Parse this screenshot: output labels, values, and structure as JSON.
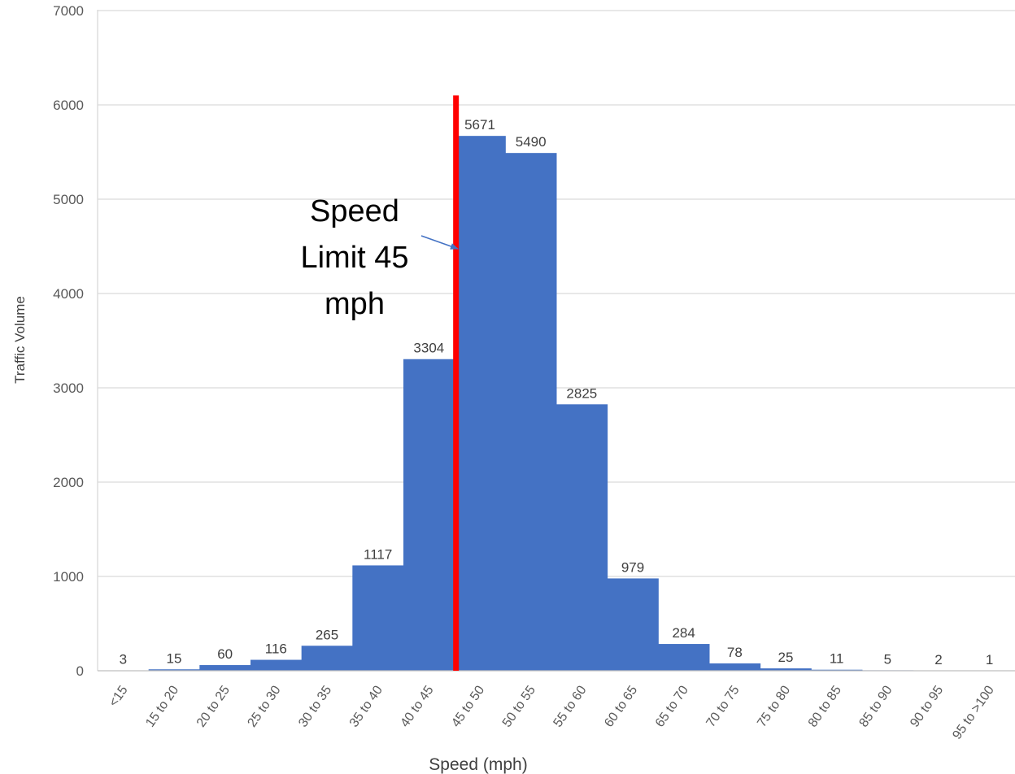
{
  "chart_data": {
    "type": "bar",
    "title": "",
    "xlabel": "Speed (mph)",
    "ylabel": "Traffic Volume",
    "ylim": [
      0,
      7000
    ],
    "y_ticks": [
      "0",
      "1000",
      "2000",
      "3000",
      "4000",
      "5000",
      "6000",
      "7000"
    ],
    "grid": true,
    "categories": [
      "<15",
      "15 to 20",
      "20 to 25",
      "25 to 30",
      "30 to 35",
      "35 to 40",
      "40 to 45",
      "45 to 50",
      "50 to 55",
      "55 to 60",
      "60 to 65",
      "65 to 70",
      "70 to 75",
      "75 to 80",
      "80 to 85",
      "85 to 90",
      "90 to 95",
      "95 to >100"
    ],
    "values": [
      3,
      15,
      60,
      116,
      265,
      1117,
      3304,
      5671,
      5490,
      2825,
      979,
      284,
      78,
      25,
      11,
      5,
      2,
      1
    ],
    "data_labels": [
      "3",
      "15",
      "60",
      "116",
      "265",
      "1117",
      "3304",
      "5671",
      "5490",
      "2825",
      "979",
      "284",
      "78",
      "25",
      "11",
      "5",
      "2",
      "1"
    ],
    "bar_color": "#4472c4",
    "reference_line": {
      "color": "#ff0000",
      "x_position_between": [
        "40 to 45",
        "45 to 50"
      ],
      "top_value": 6100
    },
    "annotation": {
      "lines": [
        "Speed",
        "Limit 45",
        "mph"
      ],
      "arrow_color": "#4472c4"
    }
  }
}
